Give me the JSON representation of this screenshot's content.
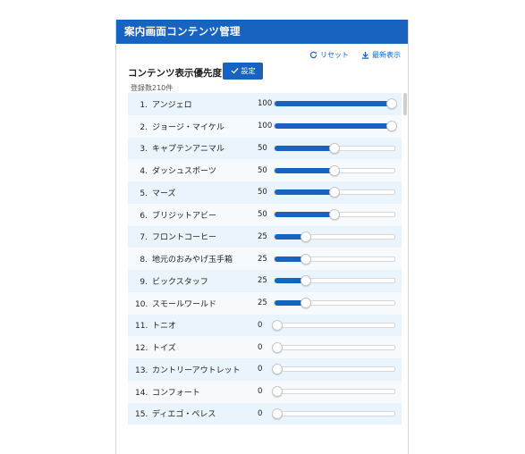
{
  "panel": {
    "title": "案内画面コンテンツ管理",
    "reset_label": "リセット",
    "refresh_label": "最新表示",
    "section_title": "コンテンツ表示優先度",
    "set_label": "設定",
    "count_text": "登録数210件"
  },
  "colors": {
    "accent": "#1863c0",
    "row_alt": "#eaf4fc"
  },
  "rows": [
    {
      "num": "1.",
      "name": "アンジェロ",
      "value": 100
    },
    {
      "num": "2.",
      "name": "ジョージ・マイケル",
      "value": 100
    },
    {
      "num": "3.",
      "name": "キャプテンアニマル",
      "value": 50
    },
    {
      "num": "4.",
      "name": "ダッシュスポーツ",
      "value": 50
    },
    {
      "num": "5.",
      "name": "マーズ",
      "value": 50
    },
    {
      "num": "6.",
      "name": "ブリジットアビー",
      "value": 50
    },
    {
      "num": "7.",
      "name": "フロントコーヒー",
      "value": 25
    },
    {
      "num": "8.",
      "name": "地元のおみやげ玉手箱",
      "value": 25
    },
    {
      "num": "9.",
      "name": "ビックスタッフ",
      "value": 25
    },
    {
      "num": "10.",
      "name": "スモールワールド",
      "value": 25
    },
    {
      "num": "11.",
      "name": "トニオ",
      "value": 0
    },
    {
      "num": "12.",
      "name": "トイズ",
      "value": 0
    },
    {
      "num": "13.",
      "name": "カントリーアウトレット",
      "value": 0
    },
    {
      "num": "14.",
      "name": "コンフォート",
      "value": 0
    },
    {
      "num": "15.",
      "name": "ディエゴ・ペレス",
      "value": 0
    }
  ]
}
